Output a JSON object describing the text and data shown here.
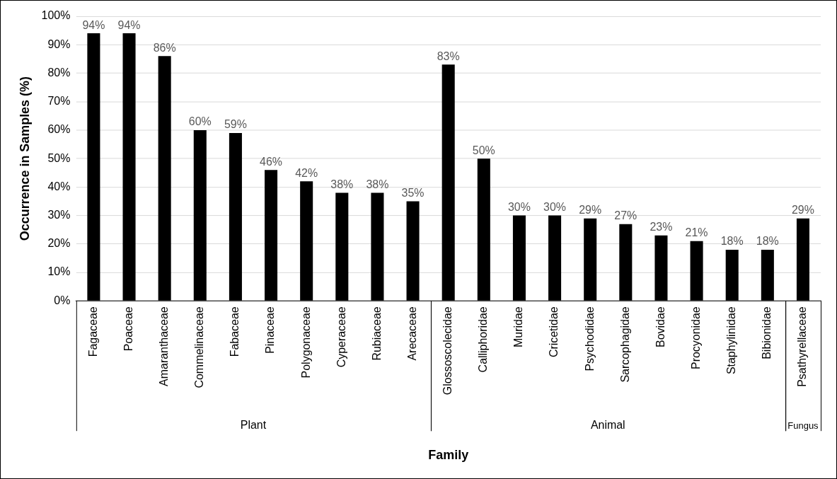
{
  "chart_data": {
    "type": "bar",
    "xlabel": "Family",
    "ylabel": "Occurrence in Samples (%)",
    "categories": [
      "Fagaceae",
      "Poaceae",
      "Amaranthaceae",
      "Commelinaceae",
      "Fabaceae",
      "Pinaceae",
      "Polygonaceae",
      "Cyperaceae",
      "Rubiaceae",
      "Arecaceae",
      "Glossoscolecidae",
      "Calliphoridae",
      "Muridae",
      "Cricetidae",
      "Psychodidae",
      "Sarcophagidae",
      "Bovidae",
      "Procyonidae",
      "Staphylinidae",
      "Bibionidae",
      "Psathyrellaceae"
    ],
    "values": [
      94,
      94,
      86,
      60,
      59,
      46,
      42,
      38,
      38,
      35,
      83,
      50,
      30,
      30,
      29,
      27,
      23,
      21,
      18,
      18,
      29
    ],
    "value_labels": [
      "94%",
      "94%",
      "86%",
      "60%",
      "59%",
      "46%",
      "42%",
      "38%",
      "38%",
      "35%",
      "83%",
      "50%",
      "30%",
      "30%",
      "29%",
      "27%",
      "23%",
      "21%",
      "18%",
      "18%",
      "29%"
    ],
    "color": "#000000",
    "ylim": [
      0,
      100
    ],
    "yticks": [
      {
        "value": 0,
        "label": "0%"
      },
      {
        "value": 10,
        "label": "10%"
      },
      {
        "value": 20,
        "label": "20%"
      },
      {
        "value": 30,
        "label": "30%"
      },
      {
        "value": 40,
        "label": "40%"
      },
      {
        "value": 50,
        "label": "50%"
      },
      {
        "value": 60,
        "label": "60%"
      },
      {
        "value": 70,
        "label": "70%"
      },
      {
        "value": 80,
        "label": "80%"
      },
      {
        "value": 90,
        "label": "90%"
      },
      {
        "value": 100,
        "label": "100%"
      }
    ],
    "grid": "y",
    "legend": false,
    "annotations": [
      "Plant",
      "Animal",
      "Fungus"
    ]
  }
}
